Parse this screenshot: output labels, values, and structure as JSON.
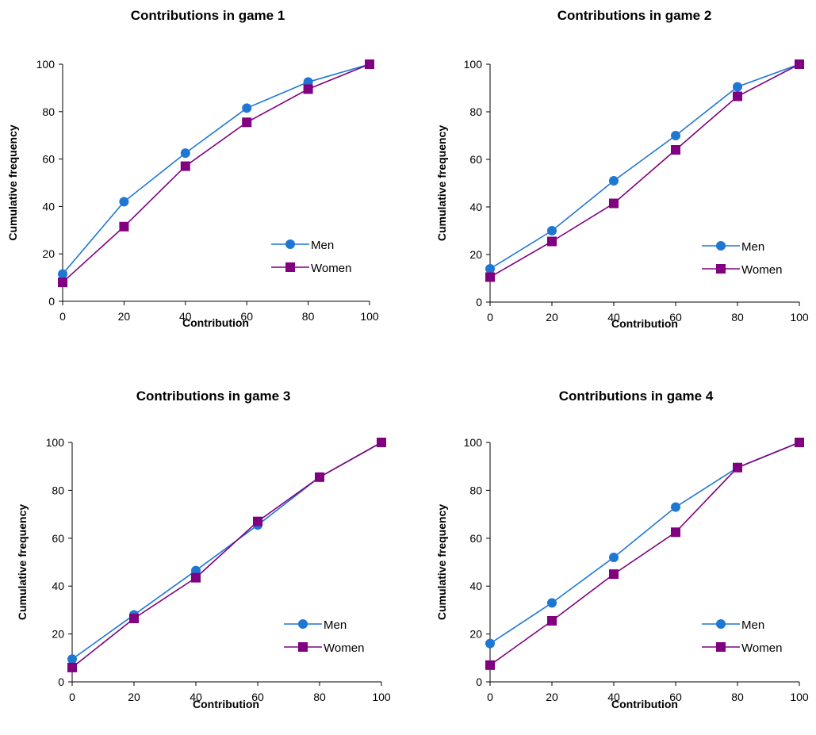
{
  "chart_data": [
    {
      "type": "line",
      "title": "Contributions in game 1",
      "xlabel": "Contribution",
      "ylabel": "Cumulative frequency",
      "x": [
        0,
        20,
        40,
        60,
        80,
        100
      ],
      "xlim": [
        0,
        100
      ],
      "ylim": [
        0,
        100
      ],
      "xticks": [
        "0",
        "20",
        "40",
        "60",
        "80",
        "100"
      ],
      "yticks": [
        "0",
        "20",
        "40",
        "60",
        "80",
        "100"
      ],
      "grid": false,
      "legend": "right",
      "series": [
        {
          "name": "Men",
          "color": "#1f77d4",
          "marker": "circle",
          "values": [
            11.5,
            42,
            62.5,
            81.5,
            92.5,
            100
          ]
        },
        {
          "name": "Women",
          "color": "#800080",
          "marker": "square",
          "values": [
            8,
            31.5,
            57,
            75.5,
            89.5,
            100
          ]
        }
      ]
    },
    {
      "type": "line",
      "title": "Contributions in game 2",
      "xlabel": "Contribution",
      "ylabel": "Cumulative frequency",
      "x": [
        0,
        20,
        40,
        60,
        80,
        100
      ],
      "xlim": [
        0,
        100
      ],
      "ylim": [
        0,
        100
      ],
      "xticks": [
        "0",
        "20",
        "40",
        "60",
        "80",
        "100"
      ],
      "yticks": [
        "0",
        "20",
        "40",
        "60",
        "80",
        "100"
      ],
      "grid": false,
      "legend": "right",
      "series": [
        {
          "name": "Men",
          "color": "#1f77d4",
          "marker": "circle",
          "values": [
            14,
            30,
            51,
            70,
            90.5,
            100
          ]
        },
        {
          "name": "Women",
          "color": "#800080",
          "marker": "square",
          "values": [
            10.5,
            25.5,
            41.5,
            64,
            86.5,
            100
          ]
        }
      ]
    },
    {
      "type": "line",
      "title": "Contributions in game 3",
      "xlabel": "Contribution",
      "ylabel": "Cumulative frequency",
      "x": [
        0,
        20,
        40,
        60,
        80,
        100
      ],
      "xlim": [
        0,
        100
      ],
      "ylim": [
        0,
        100
      ],
      "xticks": [
        "0",
        "20",
        "40",
        "60",
        "80",
        "100"
      ],
      "yticks": [
        "0",
        "20",
        "40",
        "60",
        "80",
        "100"
      ],
      "grid": false,
      "legend": "right",
      "series": [
        {
          "name": "Men",
          "color": "#1f77d4",
          "marker": "circle",
          "values": [
            9.5,
            28,
            46.5,
            65.5,
            85.5,
            100
          ]
        },
        {
          "name": "Women",
          "color": "#800080",
          "marker": "square",
          "values": [
            6,
            26.5,
            43.5,
            67,
            85.5,
            100
          ]
        }
      ]
    },
    {
      "type": "line",
      "title": "Contributions in game 4",
      "xlabel": "Contribution",
      "ylabel": "Cumulative frequency",
      "x": [
        0,
        20,
        40,
        60,
        80,
        100
      ],
      "xlim": [
        0,
        100
      ],
      "ylim": [
        0,
        100
      ],
      "xticks": [
        "0",
        "20",
        "40",
        "60",
        "80",
        "100"
      ],
      "yticks": [
        "0",
        "20",
        "40",
        "60",
        "80",
        "100"
      ],
      "grid": false,
      "legend": "right",
      "series": [
        {
          "name": "Men",
          "color": "#1f77d4",
          "marker": "circle",
          "values": [
            16,
            33,
            52,
            73,
            89.5,
            100
          ]
        },
        {
          "name": "Women",
          "color": "#800080",
          "marker": "square",
          "values": [
            7,
            25.5,
            45,
            62.5,
            89.5,
            100
          ]
        }
      ]
    }
  ]
}
